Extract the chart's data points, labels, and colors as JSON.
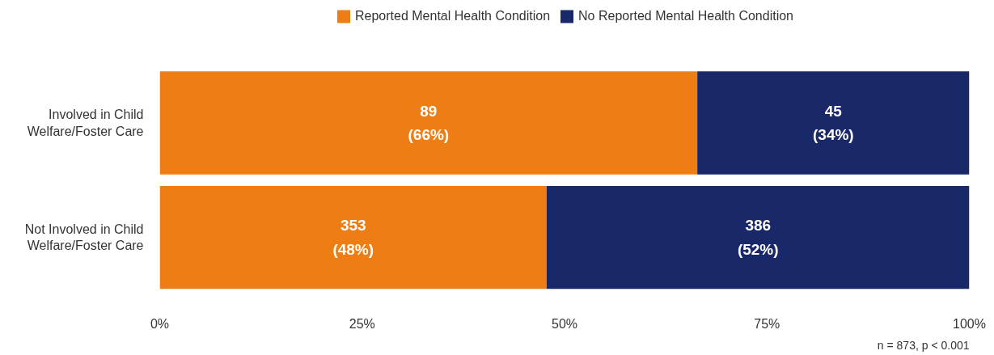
{
  "chart_data": {
    "type": "bar",
    "orientation": "horizontal",
    "stacked": true,
    "categories": [
      "Involved in Child\nWelfare/Foster Care",
      "Not Involved in Child\nWelfare/Foster Care"
    ],
    "series": [
      {
        "name": "Reported Mental Health Condition",
        "color": "#ee7d14",
        "values": [
          66.4,
          47.8
        ],
        "value_labels": [
          "89\n(66%)",
          "353\n(48%)"
        ]
      },
      {
        "name": "No Reported Mental Health Condition",
        "color": "#192868",
        "values": [
          33.6,
          52.2
        ],
        "value_labels": [
          "45\n(34%)",
          "386\n(52%)"
        ]
      }
    ],
    "xlim": [
      0,
      100
    ],
    "xticks": [
      {
        "value": 0,
        "label": "0%"
      },
      {
        "value": 25,
        "label": "25%"
      },
      {
        "value": 50,
        "label": "50%"
      },
      {
        "value": 75,
        "label": "75%"
      },
      {
        "value": 100,
        "label": "100%"
      }
    ],
    "grid": false,
    "legend": "top",
    "annotations": [
      "n = 873, p < 0.001"
    ]
  }
}
